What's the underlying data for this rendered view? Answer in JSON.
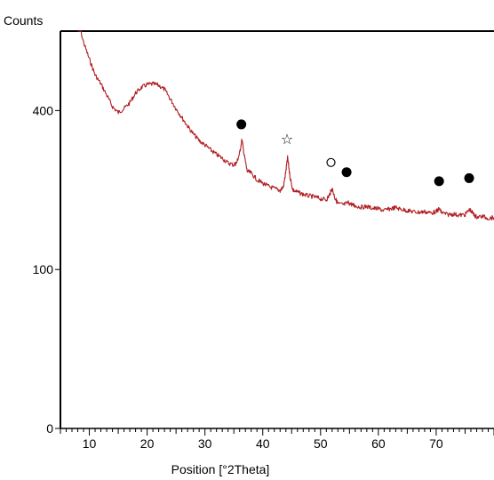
{
  "chart_data": {
    "type": "line",
    "ylabel": "Counts",
    "xlabel": "Position [°2Theta]",
    "x_ticks": [
      10,
      20,
      30,
      40,
      50,
      60,
      70
    ],
    "y_ticks": [
      {
        "value": 0,
        "label": "0"
      },
      {
        "value": 100,
        "label": "100"
      },
      {
        "value": 400,
        "label": "400"
      }
    ],
    "y_scale": "sqrt",
    "xlim": [
      5,
      80
    ],
    "ylim": [
      0,
      625
    ],
    "series_color": "#b01e22",
    "series": [
      {
        "x": [
          8,
          9,
          10,
          11,
          12,
          13,
          14,
          15,
          16,
          17,
          18,
          19,
          20,
          21,
          22,
          23,
          24,
          25,
          26,
          27,
          28,
          29,
          30,
          31,
          32,
          33,
          34,
          35,
          35.5,
          36,
          36.4,
          36.8,
          37.3,
          38,
          39,
          40,
          41,
          42,
          43,
          43.6,
          44,
          44.3,
          44.7,
          45.2,
          46,
          47,
          48,
          49,
          50,
          51,
          51.5,
          52,
          52.5,
          53,
          54,
          54.8,
          55.5,
          56,
          57,
          58,
          59,
          60,
          61,
          62,
          63,
          64,
          65,
          66,
          67,
          68,
          69,
          70,
          70.5,
          71,
          72,
          73,
          74,
          75,
          75.8,
          76.5,
          77,
          78,
          79,
          80
        ],
        "y": [
          660,
          590,
          540,
          495,
          470,
          440,
          410,
          395,
          405,
          420,
          445,
          460,
          468,
          470,
          466,
          455,
          430,
          405,
          383,
          362,
          343,
          328,
          318,
          307,
          297,
          289,
          279,
          275,
          280,
          300,
          330,
          295,
          262,
          258,
          245,
          238,
          232,
          228,
          224,
          232,
          262,
          290,
          252,
          225,
          221,
          217,
          214,
          212,
          209,
          207,
          215,
          228,
          210,
          200,
          198,
          202,
          198,
          196,
          194,
          195,
          192,
          191,
          188,
          191,
          193,
          190,
          188,
          186,
          185,
          186,
          184,
          186,
          191,
          184,
          181,
          182,
          180,
          181,
          190,
          181,
          177,
          178,
          175,
          176
        ]
      }
    ],
    "annotations": [
      {
        "symbol": "●",
        "x": 36.3,
        "y": 366,
        "label": "filled-circle"
      },
      {
        "symbol": "☆",
        "x": 44.2,
        "y": 332,
        "label": "star"
      },
      {
        "symbol": "○",
        "x": 51.8,
        "y": 280,
        "label": "open-circle"
      },
      {
        "symbol": "●",
        "x": 54.5,
        "y": 260,
        "label": "filled-circle"
      },
      {
        "symbol": "●",
        "x": 70.5,
        "y": 242,
        "label": "filled-circle"
      },
      {
        "symbol": "●",
        "x": 75.7,
        "y": 248,
        "label": "filled-circle"
      }
    ]
  }
}
